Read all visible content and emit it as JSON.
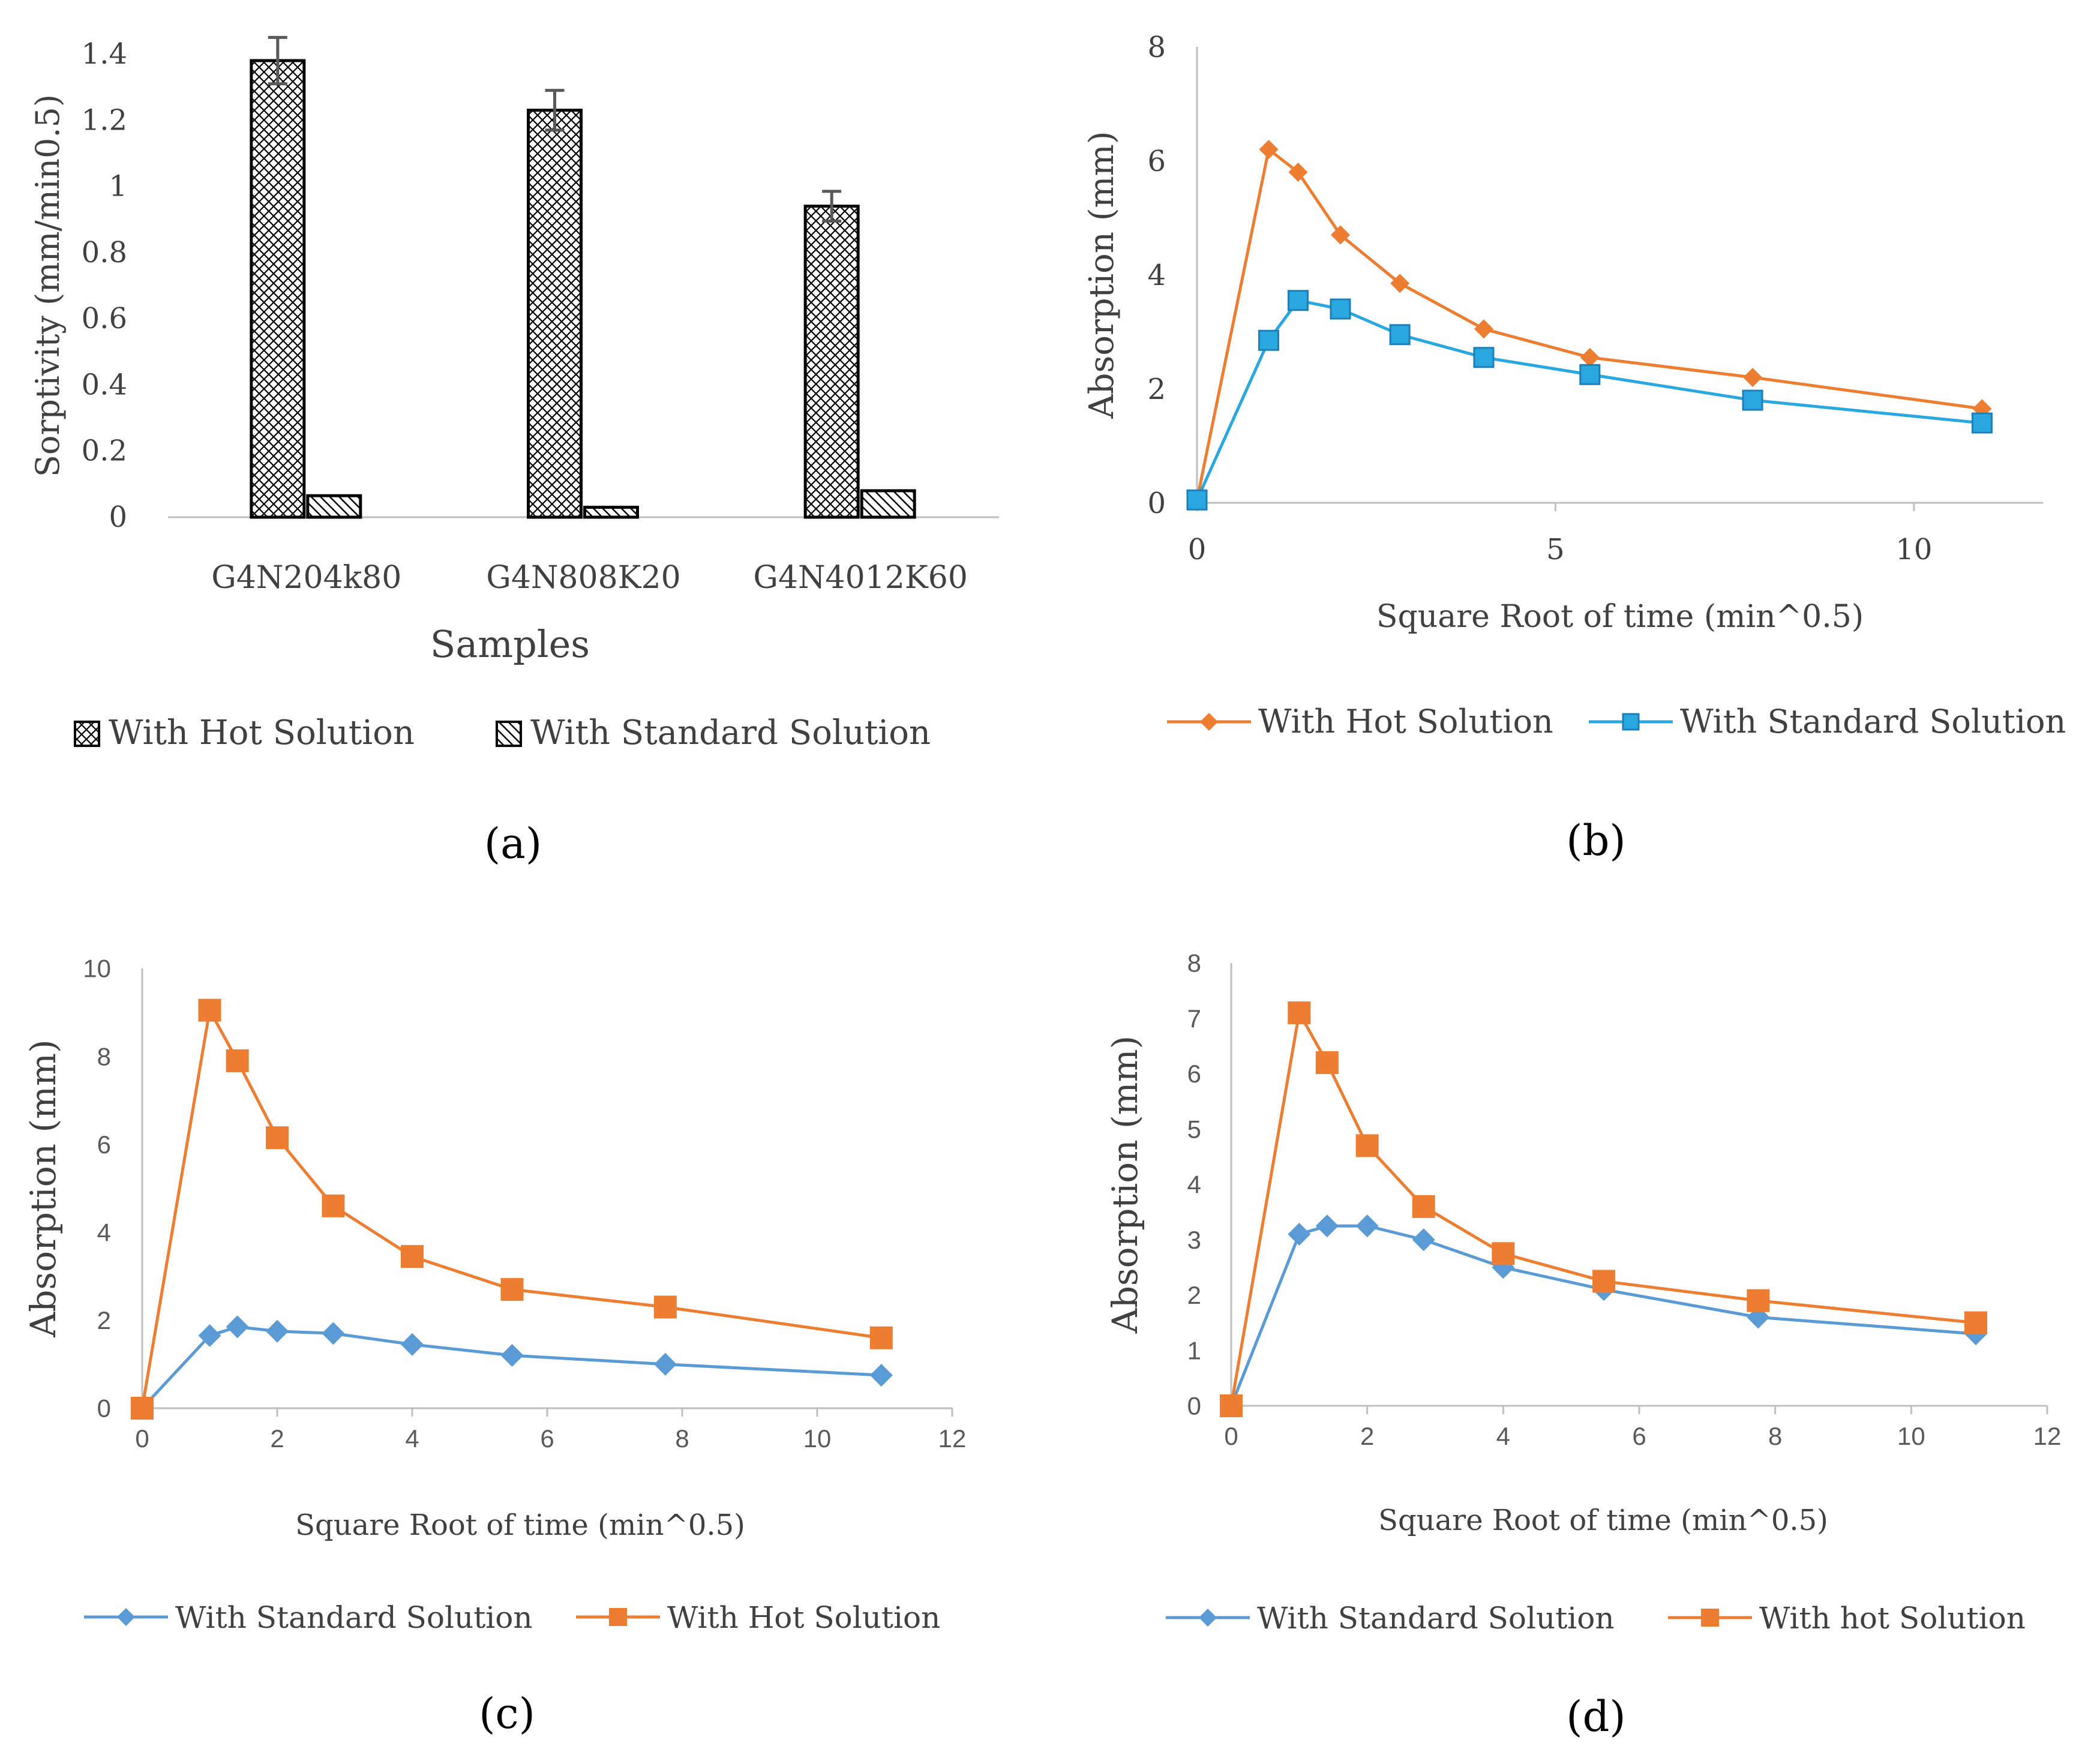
{
  "colors": {
    "orange": "#ED7D31",
    "blue_b": "#29A8E0",
    "blue": "#5B9BD5",
    "axis": "#bfbfbf",
    "text": "#404040",
    "bar_stroke": "#000000"
  },
  "chart_data": [
    {
      "panel_label": "(a)",
      "type": "bar",
      "title": "",
      "xlabel": "Samples",
      "ylabel": "Sorptivity (mm/min0.5)",
      "categories": [
        "G4N204k80",
        "G4N808K20",
        "G4N4012K60"
      ],
      "ylim": [
        0,
        1.4
      ],
      "yticks": [
        "0",
        "0.2",
        "0.4",
        "0.6",
        "0.8",
        "1",
        "1.2",
        "1.4"
      ],
      "grid": false,
      "legend_position": "bottom",
      "series": [
        {
          "name": "With Hot Solution",
          "pattern": "crosshatch",
          "values": [
            1.38,
            1.23,
            0.94
          ],
          "errors": [
            0.07,
            0.06,
            0.045
          ]
        },
        {
          "name": "With Standard Solution",
          "pattern": "diagonal",
          "values": [
            0.065,
            0.03,
            0.08
          ],
          "errors": [
            0,
            0,
            0
          ]
        }
      ]
    },
    {
      "panel_label": "(b)",
      "type": "line",
      "title": "",
      "xlabel": "Square Root of time (min^0.5)",
      "ylabel": "Absorption (mm)",
      "xlim": [
        0,
        11.8
      ],
      "ylim": [
        0,
        8
      ],
      "xticks": [
        "0",
        "5",
        "10"
      ],
      "yticks": [
        "0",
        "2",
        "4",
        "6",
        "8"
      ],
      "grid": false,
      "legend_position": "bottom",
      "series": [
        {
          "name": "With Hot Solution",
          "color": "orange",
          "marker": "diamond",
          "x": [
            0,
            1,
            1.41,
            2,
            2.83,
            4,
            5.48,
            7.75,
            10.95
          ],
          "y": [
            0.05,
            6.2,
            5.8,
            4.7,
            3.85,
            3.05,
            2.55,
            2.2,
            1.65
          ]
        },
        {
          "name": "With Standard Solution",
          "color": "blue_b",
          "marker": "square",
          "x": [
            0,
            1,
            1.41,
            2,
            2.83,
            4,
            5.48,
            7.75,
            10.95
          ],
          "y": [
            0.05,
            2.85,
            3.55,
            3.4,
            2.95,
            2.55,
            2.25,
            1.8,
            1.4
          ]
        }
      ]
    },
    {
      "panel_label": "(c)",
      "type": "line",
      "title": "",
      "xlabel": "Square Root of time (min^0.5)",
      "ylabel": "Absorption (mm)",
      "xlim": [
        0,
        12
      ],
      "ylim": [
        0,
        10
      ],
      "xticks": [
        "0",
        "2",
        "4",
        "6",
        "8",
        "10",
        "12"
      ],
      "yticks": [
        "0",
        "2",
        "4",
        "6",
        "8",
        "10"
      ],
      "grid": false,
      "legend_position": "bottom",
      "series": [
        {
          "name": "With Standard Solution",
          "color": "blue",
          "marker": "diamond",
          "x": [
            0,
            1,
            1.41,
            2,
            2.83,
            4,
            5.48,
            7.75,
            10.95
          ],
          "y": [
            0,
            1.65,
            1.85,
            1.75,
            1.7,
            1.45,
            1.2,
            1.0,
            0.75
          ]
        },
        {
          "name": "With Hot Solution",
          "color": "orange",
          "marker": "square",
          "x": [
            0,
            1,
            1.41,
            2,
            2.83,
            4,
            5.48,
            7.75,
            10.95
          ],
          "y": [
            0,
            9.05,
            7.9,
            6.15,
            4.6,
            3.45,
            2.7,
            2.3,
            1.6
          ]
        }
      ]
    },
    {
      "panel_label": "(d)",
      "type": "line",
      "title": "",
      "xlabel": "Square Root of time (min^0.5)",
      "ylabel": "Absorption (mm)",
      "xlim": [
        0,
        12
      ],
      "ylim": [
        0,
        8
      ],
      "xticks": [
        "0",
        "2",
        "4",
        "6",
        "8",
        "10",
        "12"
      ],
      "yticks": [
        "0",
        "1",
        "2",
        "3",
        "4",
        "5",
        "6",
        "7",
        "8"
      ],
      "grid": false,
      "legend_position": "bottom",
      "series": [
        {
          "name": "With Standard Solution",
          "color": "blue",
          "marker": "diamond",
          "x": [
            0,
            1,
            1.41,
            2,
            2.83,
            4,
            5.48,
            7.75,
            10.95
          ],
          "y": [
            0,
            3.1,
            3.25,
            3.25,
            3.0,
            2.5,
            2.1,
            1.6,
            1.3
          ]
        },
        {
          "name": "With hot Solution",
          "color": "orange",
          "marker": "square",
          "x": [
            0,
            1,
            1.41,
            2,
            2.83,
            4,
            5.48,
            7.75,
            10.95
          ],
          "y": [
            0,
            7.1,
            6.2,
            4.7,
            3.6,
            2.75,
            2.25,
            1.9,
            1.5
          ]
        }
      ]
    }
  ]
}
